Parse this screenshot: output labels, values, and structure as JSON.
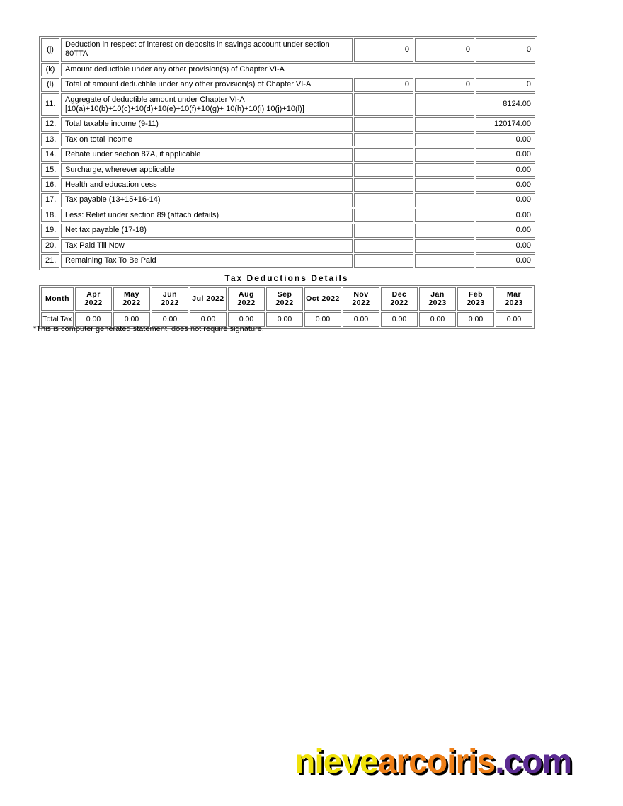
{
  "document": {
    "footnote": "*This is computer generated statement, does not require signature."
  },
  "colors": {
    "table_border": "#7a7a7a",
    "watermark_shadow": "#000000"
  },
  "tax_table": {
    "rows": [
      {
        "num": "(j)",
        "desc_lines": [
          "Deduction in respect of interest on deposits in savings account under section",
          "80TTA"
        ],
        "values": [
          "0",
          "0",
          "0"
        ]
      },
      {
        "num": "(k)",
        "desc_lines": [
          "Amount deductible under any other provision(s) of Chapter VI-A"
        ],
        "span_full": true
      },
      {
        "num": "(l)",
        "desc_lines": [
          "Total of amount deductible under any other provision(s) of Chapter VI-A"
        ],
        "values": [
          "0",
          "0",
          "0"
        ]
      },
      {
        "num": "11.",
        "desc_lines": [
          "Aggregate of deductible amount under Chapter VI-A",
          "[10(a)+10(b)+10(c)+10(d)+10(e)+10(f)+10(g)+ 10(h)+10(i) 10(j)+10(l)]"
        ],
        "values": [
          "",
          "",
          "8124.00"
        ]
      },
      {
        "num": "12.",
        "desc_lines": [
          "Total taxable income (9-11)"
        ],
        "values": [
          "",
          "",
          "120174.00"
        ]
      },
      {
        "num": "13.",
        "desc_lines": [
          "Tax on total income"
        ],
        "values": [
          "",
          "",
          "0.00"
        ]
      },
      {
        "num": "14.",
        "desc_lines": [
          "Rebate under section 87A, if applicable"
        ],
        "values": [
          "",
          "",
          "0.00"
        ]
      },
      {
        "num": "15.",
        "desc_lines": [
          "Surcharge, wherever applicable"
        ],
        "values": [
          "",
          "",
          "0.00"
        ]
      },
      {
        "num": "16.",
        "desc_lines": [
          "Health and education cess"
        ],
        "values": [
          "",
          "",
          "0.00"
        ]
      },
      {
        "num": "17.",
        "desc_lines": [
          "Tax payable (13+15+16-14)"
        ],
        "values": [
          "",
          "",
          "0.00"
        ]
      },
      {
        "num": "18.",
        "desc_lines": [
          "Less: Relief under section 89 (attach details)"
        ],
        "values": [
          "",
          "",
          "0.00"
        ]
      },
      {
        "num": "19.",
        "desc_lines": [
          "Net tax payable (17-18)"
        ],
        "values": [
          "",
          "",
          "0.00"
        ]
      },
      {
        "num": "20.",
        "desc_lines": [
          "Tax Paid Till Now"
        ],
        "values": [
          "",
          "",
          "0.00"
        ]
      },
      {
        "num": "21.",
        "desc_lines": [
          "Remaining Tax To Be Paid"
        ],
        "values": [
          "",
          "",
          "0.00"
        ]
      }
    ]
  },
  "deductions": {
    "title": "Tax Deductions Details",
    "month_header_label": "Month",
    "months": [
      "Apr 2022",
      "May 2022",
      "Jun 2022",
      "Jul 2022",
      "Aug 2022",
      "Sep 2022",
      "Oct 2022",
      "Nov 2022",
      "Dec 2022",
      "Jan 2023",
      "Feb 2023",
      "Mar 2023"
    ],
    "row_label": "Total Tax",
    "values": [
      "0.00",
      "0.00",
      "0.00",
      "0.00",
      "0.00",
      "0.00",
      "0.00",
      "0.00",
      "0.00",
      "0.00",
      "0.00",
      "0.00"
    ]
  },
  "watermark": {
    "full_text": "nievearcoiris.com",
    "segments": [
      {
        "text": "nieve",
        "color": "#f0e20a"
      },
      {
        "text": "arcoiris",
        "color": "#ef7f17"
      },
      {
        "text": ".com",
        "color": "#5b2a91"
      }
    ]
  }
}
